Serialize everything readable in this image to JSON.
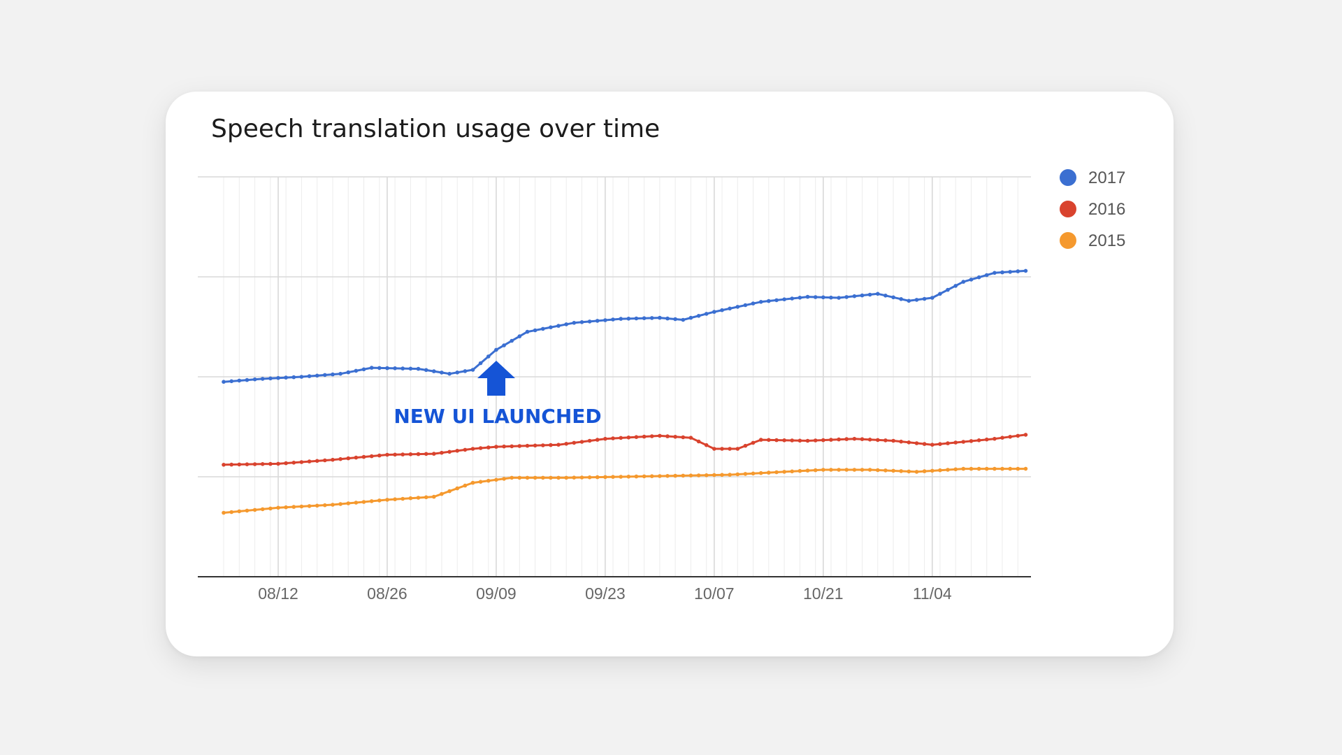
{
  "chart_data": {
    "type": "line",
    "title": "Speech translation usage over time",
    "xlabel": "",
    "ylabel": "",
    "x_ticks": [
      "08/12",
      "08/26",
      "09/09",
      "09/23",
      "10/07",
      "10/21",
      "11/04"
    ],
    "x_range": [
      "08/05",
      "11/16"
    ],
    "ylim": [
      0,
      4
    ],
    "y_tick_labels_shown": false,
    "grid": true,
    "legend_position": "right-top",
    "annotation": {
      "text": "NEW UI LAUNCHED",
      "x": "09/09",
      "marker": "up-arrow",
      "color": "#1554d6"
    },
    "series": [
      {
        "name": "2017",
        "color": "#3b6fd1",
        "points": [
          [
            "08/05",
            1.95
          ],
          [
            "08/10",
            1.98
          ],
          [
            "08/15",
            2.0
          ],
          [
            "08/20",
            2.03
          ],
          [
            "08/24",
            2.09
          ],
          [
            "08/30",
            2.08
          ],
          [
            "09/03",
            2.03
          ],
          [
            "09/06",
            2.07
          ],
          [
            "09/09",
            2.27
          ],
          [
            "09/13",
            2.45
          ],
          [
            "09/19",
            2.54
          ],
          [
            "09/25",
            2.58
          ],
          [
            "09/30",
            2.59
          ],
          [
            "10/03",
            2.57
          ],
          [
            "10/07",
            2.65
          ],
          [
            "10/13",
            2.75
          ],
          [
            "10/19",
            2.8
          ],
          [
            "10/23",
            2.79
          ],
          [
            "10/28",
            2.83
          ],
          [
            "11/01",
            2.76
          ],
          [
            "11/04",
            2.79
          ],
          [
            "11/08",
            2.95
          ],
          [
            "11/12",
            3.04
          ],
          [
            "11/16",
            3.06
          ]
        ]
      },
      {
        "name": "2016",
        "color": "#d9432e",
        "points": [
          [
            "08/05",
            1.12
          ],
          [
            "08/12",
            1.13
          ],
          [
            "08/19",
            1.17
          ],
          [
            "08/26",
            1.22
          ],
          [
            "09/01",
            1.23
          ],
          [
            "09/06",
            1.28
          ],
          [
            "09/09",
            1.3
          ],
          [
            "09/17",
            1.32
          ],
          [
            "09/23",
            1.38
          ],
          [
            "09/30",
            1.41
          ],
          [
            "10/04",
            1.39
          ],
          [
            "10/07",
            1.28
          ],
          [
            "10/10",
            1.28
          ],
          [
            "10/13",
            1.37
          ],
          [
            "10/19",
            1.36
          ],
          [
            "10/25",
            1.38
          ],
          [
            "10/30",
            1.36
          ],
          [
            "11/04",
            1.32
          ],
          [
            "11/08",
            1.35
          ],
          [
            "11/12",
            1.38
          ],
          [
            "11/16",
            1.42
          ]
        ]
      },
      {
        "name": "2015",
        "color": "#f5992e",
        "points": [
          [
            "08/05",
            0.64
          ],
          [
            "08/12",
            0.69
          ],
          [
            "08/19",
            0.72
          ],
          [
            "08/26",
            0.77
          ],
          [
            "09/01",
            0.8
          ],
          [
            "09/06",
            0.94
          ],
          [
            "09/11",
            0.99
          ],
          [
            "09/18",
            0.99
          ],
          [
            "09/25",
            1.0
          ],
          [
            "10/02",
            1.01
          ],
          [
            "10/09",
            1.02
          ],
          [
            "10/16",
            1.05
          ],
          [
            "10/21",
            1.07
          ],
          [
            "10/27",
            1.07
          ],
          [
            "11/02",
            1.05
          ],
          [
            "11/08",
            1.08
          ],
          [
            "11/16",
            1.08
          ]
        ]
      }
    ]
  }
}
